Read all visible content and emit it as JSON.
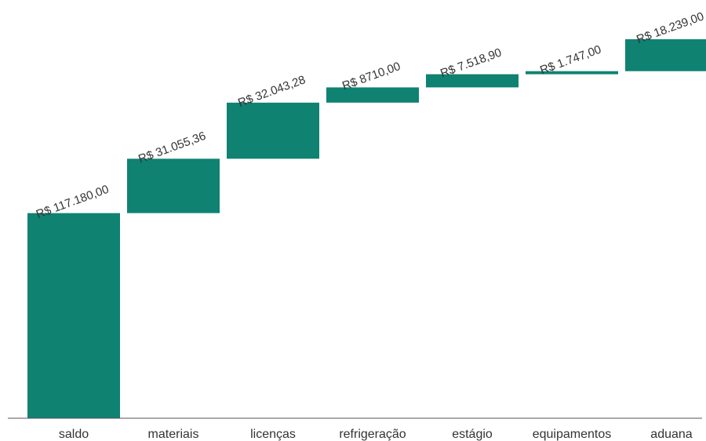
{
  "chart_data": {
    "type": "bar",
    "subtype": "waterfall",
    "title": "",
    "xlabel": "",
    "ylabel": "",
    "categories": [
      "saldo",
      "materiais",
      "licenças",
      "refrigeração",
      "estágio",
      "equipamentos",
      "aduana"
    ],
    "values": [
      117180.0,
      31055.36,
      32043.28,
      8710.0,
      7518.9,
      1747.0,
      18239.0
    ],
    "value_labels": [
      "R$ 117.180,00",
      "R$ 31.055,36",
      "R$ 32.043,28",
      "R$ 8710,00",
      "R$ 7.518,90",
      "R$ 1.747,00",
      "R$ 18.239,00"
    ],
    "ylim": [
      0,
      216500
    ],
    "grid": false,
    "legend": "none",
    "colors": {
      "bar": "#0f8272",
      "axis": "#555555",
      "text": "#333333"
    }
  }
}
